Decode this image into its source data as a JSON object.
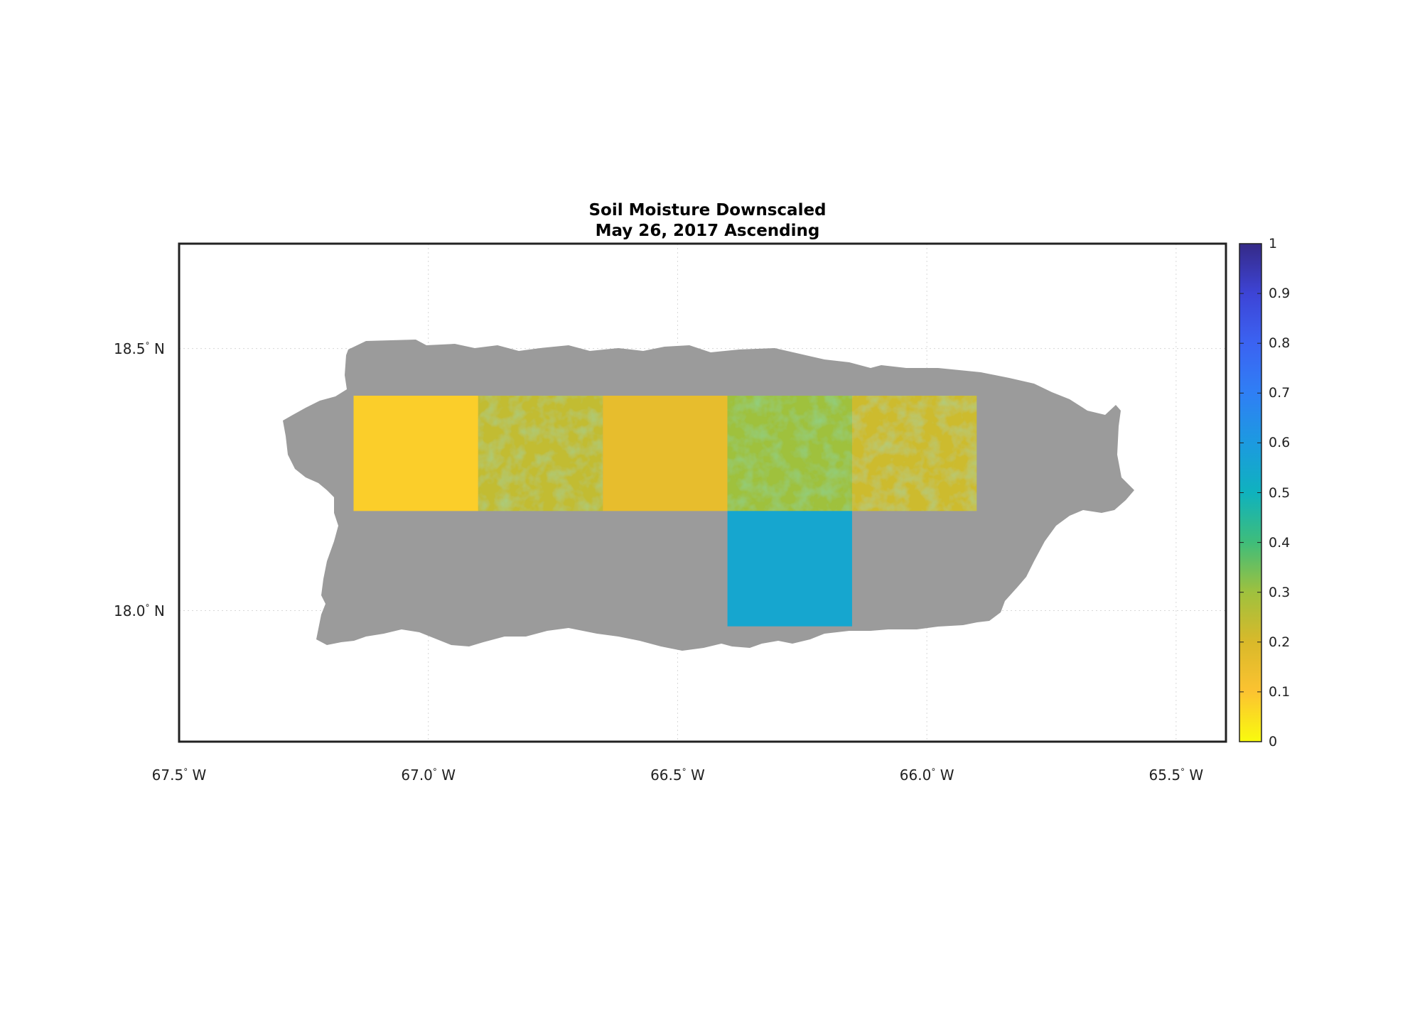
{
  "title": {
    "line1": "Soil Moisture Downscaled",
    "line2": "May 26, 2017 Ascending"
  },
  "map": {
    "land_color": "#9b9b9b",
    "frame_color": "#222222",
    "grid_color": "#d8d8d8",
    "lon_ticks": [
      {
        "value": -67.5,
        "deg": "67.5",
        "hemi": "W"
      },
      {
        "value": -67.0,
        "deg": "67.0",
        "hemi": "W"
      },
      {
        "value": -66.5,
        "deg": "66.5",
        "hemi": "W"
      },
      {
        "value": -66.0,
        "deg": "66.0",
        "hemi": "W"
      },
      {
        "value": -65.5,
        "deg": "65.5",
        "hemi": "W"
      }
    ],
    "lat_ticks": [
      {
        "value": 18.5,
        "deg": "18.5",
        "hemi": "N"
      },
      {
        "value": 18.0,
        "deg": "18.0",
        "hemi": "N"
      }
    ],
    "extent": {
      "lon_min": -67.5,
      "lon_max": -65.4,
      "lat_min": 17.75,
      "lat_max": 18.7
    }
  },
  "colorbar": {
    "ticks": [
      "0",
      "0.1",
      "0.2",
      "0.3",
      "0.4",
      "0.5",
      "0.6",
      "0.7",
      "0.8",
      "0.9",
      "1"
    ],
    "min": 0,
    "max": 1,
    "colors": [
      "#f9fb0e",
      "#fcc331",
      "#d9b92a",
      "#9fc13e",
      "#3fbd7a",
      "#0fb2be",
      "#1c9ae0",
      "#2f7ff5",
      "#3b63f2",
      "#3d44d6",
      "#352a87"
    ]
  },
  "chart_data": {
    "type": "heatmap",
    "title": "Soil Moisture Downscaled\nMay 26, 2017 Ascending",
    "xlabel": "",
    "ylabel": "",
    "xlim": [
      -67.5,
      -65.4
    ],
    "ylim": [
      17.75,
      18.7
    ],
    "colorbar_range": [
      0,
      1
    ],
    "tiles": [
      {
        "lon": [
          -67.15,
          -66.9
        ],
        "lat": [
          18.19,
          18.41
        ],
        "value": 0.08
      },
      {
        "lon": [
          -66.9,
          -66.65
        ],
        "lat": [
          18.19,
          18.41
        ],
        "value": 0.24
      },
      {
        "lon": [
          -66.65,
          -66.4
        ],
        "lat": [
          18.19,
          18.41
        ],
        "value": 0.16
      },
      {
        "lon": [
          -66.4,
          -66.15
        ],
        "lat": [
          18.19,
          18.41
        ],
        "value": 0.3
      },
      {
        "lon": [
          -66.15,
          -65.9
        ],
        "lat": [
          18.19,
          18.41
        ],
        "value": 0.22
      },
      {
        "lon": [
          -66.4,
          -66.15
        ],
        "lat": [
          17.97,
          18.19
        ],
        "value": 0.55
      }
    ]
  }
}
